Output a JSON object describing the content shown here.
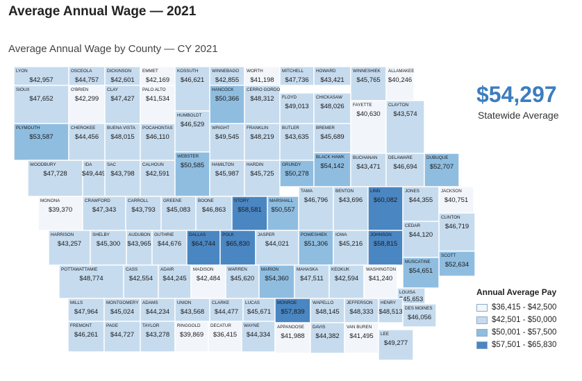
{
  "title": "Average Annual Wage — 2021",
  "subtitle": "Average Annual Wage by County — CY 2021",
  "statewide": {
    "value": "$54,297",
    "label": "Statewide Average"
  },
  "legend": {
    "title": "Annual Average Pay",
    "items": [
      {
        "label": "$36,415 - $42,500",
        "color": "#f2f6fb"
      },
      {
        "label": "$42,501 - $50,000",
        "color": "#c6dbee"
      },
      {
        "label": "$50,001 - $57,500",
        "color": "#8fbde0"
      },
      {
        "label": "$57,501 - $65,830",
        "color": "#4a86c2"
      }
    ]
  },
  "counties": [
    {
      "name": "LYON",
      "wage": "$42,957",
      "bin": 1
    },
    {
      "name": "OSCEOLA",
      "wage": "$44,757",
      "bin": 1
    },
    {
      "name": "DICKINSON",
      "wage": "$42,601",
      "bin": 1
    },
    {
      "name": "EMMET",
      "wage": "$42,169",
      "bin": 0
    },
    {
      "name": "KOSSUTH",
      "wage": "$46,621",
      "bin": 1
    },
    {
      "name": "WINNEBAGO",
      "wage": "$42,855",
      "bin": 1
    },
    {
      "name": "WORTH",
      "wage": "$41,198",
      "bin": 0
    },
    {
      "name": "MITCHELL",
      "wage": "$47,736",
      "bin": 1
    },
    {
      "name": "HOWARD",
      "wage": "$43,421",
      "bin": 1
    },
    {
      "name": "WINNESHIEK",
      "wage": "$45,765",
      "bin": 1
    },
    {
      "name": "ALLAMAKEE",
      "wage": "$40,246",
      "bin": 0
    },
    {
      "name": "SIOUX",
      "wage": "$47,652",
      "bin": 1
    },
    {
      "name": "O'BRIEN",
      "wage": "$42,299",
      "bin": 0
    },
    {
      "name": "CLAY",
      "wage": "$47,427",
      "bin": 1
    },
    {
      "name": "PALO ALTO",
      "wage": "$41,534",
      "bin": 0
    },
    {
      "name": "HANCOCK",
      "wage": "$50,366",
      "bin": 2
    },
    {
      "name": "CERRO GORDO",
      "wage": "$48,312",
      "bin": 1
    },
    {
      "name": "FLOYD",
      "wage": "$49,013",
      "bin": 1
    },
    {
      "name": "CHICKASAW",
      "wage": "$48,026",
      "bin": 1
    },
    {
      "name": "FAYETTE",
      "wage": "$40,630",
      "bin": 0
    },
    {
      "name": "CLAYTON",
      "wage": "$43,574",
      "bin": 1
    },
    {
      "name": "PLYMOUTH",
      "wage": "$53,587",
      "bin": 2
    },
    {
      "name": "CHEROKEE",
      "wage": "$44,456",
      "bin": 1
    },
    {
      "name": "BUENA VISTA",
      "wage": "$48,015",
      "bin": 1
    },
    {
      "name": "POCAHONTAS",
      "wage": "$46,110",
      "bin": 1
    },
    {
      "name": "HUMBOLDT",
      "wage": "$46,529",
      "bin": 1
    },
    {
      "name": "WRIGHT",
      "wage": "$49,545",
      "bin": 1
    },
    {
      "name": "FRANKLIN",
      "wage": "$48,219",
      "bin": 1
    },
    {
      "name": "BUTLER",
      "wage": "$43,635",
      "bin": 1
    },
    {
      "name": "BREMER",
      "wage": "$45,689",
      "bin": 1
    },
    {
      "name": "WOODBURY",
      "wage": "$47,728",
      "bin": 1
    },
    {
      "name": "IDA",
      "wage": "$49,449",
      "bin": 1
    },
    {
      "name": "SAC",
      "wage": "$43,798",
      "bin": 1
    },
    {
      "name": "CALHOUN",
      "wage": "$42,591",
      "bin": 1
    },
    {
      "name": "WEBSTER",
      "wage": "$50,585",
      "bin": 2
    },
    {
      "name": "HAMILTON",
      "wage": "$45,987",
      "bin": 1
    },
    {
      "name": "HARDIN",
      "wage": "$45,725",
      "bin": 1
    },
    {
      "name": "GRUNDY",
      "wage": "$50,278",
      "bin": 2
    },
    {
      "name": "BLACK HAWK",
      "wage": "$54,142",
      "bin": 2
    },
    {
      "name": "BUCHANAN",
      "wage": "$43,471",
      "bin": 1
    },
    {
      "name": "DELAWARE",
      "wage": "$46,694",
      "bin": 1
    },
    {
      "name": "DUBUQUE",
      "wage": "$52,707",
      "bin": 2
    },
    {
      "name": "MONONA",
      "wage": "$39,370",
      "bin": 0
    },
    {
      "name": "CRAWFORD",
      "wage": "$47,343",
      "bin": 1
    },
    {
      "name": "CARROLL",
      "wage": "$43,793",
      "bin": 1
    },
    {
      "name": "GREENE",
      "wage": "$45,083",
      "bin": 1
    },
    {
      "name": "BOONE",
      "wage": "$46,863",
      "bin": 1
    },
    {
      "name": "STORY",
      "wage": "$58,581",
      "bin": 3
    },
    {
      "name": "MARSHALL",
      "wage": "$50,557",
      "bin": 2
    },
    {
      "name": "TAMA",
      "wage": "$46,796",
      "bin": 1
    },
    {
      "name": "BENTON",
      "wage": "$43,696",
      "bin": 1
    },
    {
      "name": "LINN",
      "wage": "$60,082",
      "bin": 3
    },
    {
      "name": "JONES",
      "wage": "$44,355",
      "bin": 1
    },
    {
      "name": "JACKSON",
      "wage": "$40,751",
      "bin": 0
    },
    {
      "name": "CLINTON",
      "wage": "$46,719",
      "bin": 1
    },
    {
      "name": "HARRISON",
      "wage": "$43,257",
      "bin": 1
    },
    {
      "name": "SHELBY",
      "wage": "$45,300",
      "bin": 1
    },
    {
      "name": "AUDUBON",
      "wage": "$43,965",
      "bin": 1
    },
    {
      "name": "GUTHRIE",
      "wage": "$44,676",
      "bin": 1
    },
    {
      "name": "DALLAS",
      "wage": "$64,744",
      "bin": 3
    },
    {
      "name": "POLK",
      "wage": "$65,830",
      "bin": 3
    },
    {
      "name": "JASPER",
      "wage": "$44,021",
      "bin": 1
    },
    {
      "name": "POWESHIEK",
      "wage": "$51,306",
      "bin": 2
    },
    {
      "name": "IOWA",
      "wage": "$45,216",
      "bin": 1
    },
    {
      "name": "JOHNSON",
      "wage": "$58,815",
      "bin": 3
    },
    {
      "name": "CEDAR",
      "wage": "$44,120",
      "bin": 1
    },
    {
      "name": "SCOTT",
      "wage": "$52,634",
      "bin": 2
    },
    {
      "name": "POTTAWATTAMIE",
      "wage": "$48,774",
      "bin": 1
    },
    {
      "name": "CASS",
      "wage": "$42,554",
      "bin": 1
    },
    {
      "name": "ADAIR",
      "wage": "$44,245",
      "bin": 1
    },
    {
      "name": "MADISON",
      "wage": "$42,484",
      "bin": 0
    },
    {
      "name": "WARREN",
      "wage": "$45,620",
      "bin": 1
    },
    {
      "name": "MARION",
      "wage": "$54,360",
      "bin": 2
    },
    {
      "name": "MAHASKA",
      "wage": "$47,511",
      "bin": 1
    },
    {
      "name": "KEOKUK",
      "wage": "$42,594",
      "bin": 1
    },
    {
      "name": "WASHINGTON",
      "wage": "$41,240",
      "bin": 0
    },
    {
      "name": "MUSCATINE",
      "wage": "$54,651",
      "bin": 2
    },
    {
      "name": "LOUISA",
      "wage": "$45,653",
      "bin": 1
    },
    {
      "name": "MILLS",
      "wage": "$47,964",
      "bin": 1
    },
    {
      "name": "MONTGOMERY",
      "wage": "$45,024",
      "bin": 1
    },
    {
      "name": "ADAMS",
      "wage": "$44,234",
      "bin": 1
    },
    {
      "name": "UNION",
      "wage": "$43,568",
      "bin": 1
    },
    {
      "name": "CLARKE",
      "wage": "$44,477",
      "bin": 1
    },
    {
      "name": "LUCAS",
      "wage": "$45,671",
      "bin": 1
    },
    {
      "name": "MONROE",
      "wage": "$57,839",
      "bin": 3
    },
    {
      "name": "WAPELLO",
      "wage": "$48,145",
      "bin": 1
    },
    {
      "name": "JEFFERSON",
      "wage": "$48,333",
      "bin": 1
    },
    {
      "name": "HENRY",
      "wage": "$48,513",
      "bin": 1
    },
    {
      "name": "DES MOINES",
      "wage": "$46,056",
      "bin": 1
    },
    {
      "name": "FREMONT",
      "wage": "$46,261",
      "bin": 1
    },
    {
      "name": "PAGE",
      "wage": "$44,727",
      "bin": 1
    },
    {
      "name": "TAYLOR",
      "wage": "$43,278",
      "bin": 1
    },
    {
      "name": "RINGGOLD",
      "wage": "$39,869",
      "bin": 0
    },
    {
      "name": "DECATUR",
      "wage": "$36,415",
      "bin": 0
    },
    {
      "name": "WAYNE",
      "wage": "$44,334",
      "bin": 1
    },
    {
      "name": "APPANOOSE",
      "wage": "$41,988",
      "bin": 0
    },
    {
      "name": "DAVIS",
      "wage": "$44,382",
      "bin": 1
    },
    {
      "name": "VAN BUREN",
      "wage": "$41,495",
      "bin": 0
    },
    {
      "name": "LEE",
      "wage": "$49,277",
      "bin": 1
    }
  ]
}
